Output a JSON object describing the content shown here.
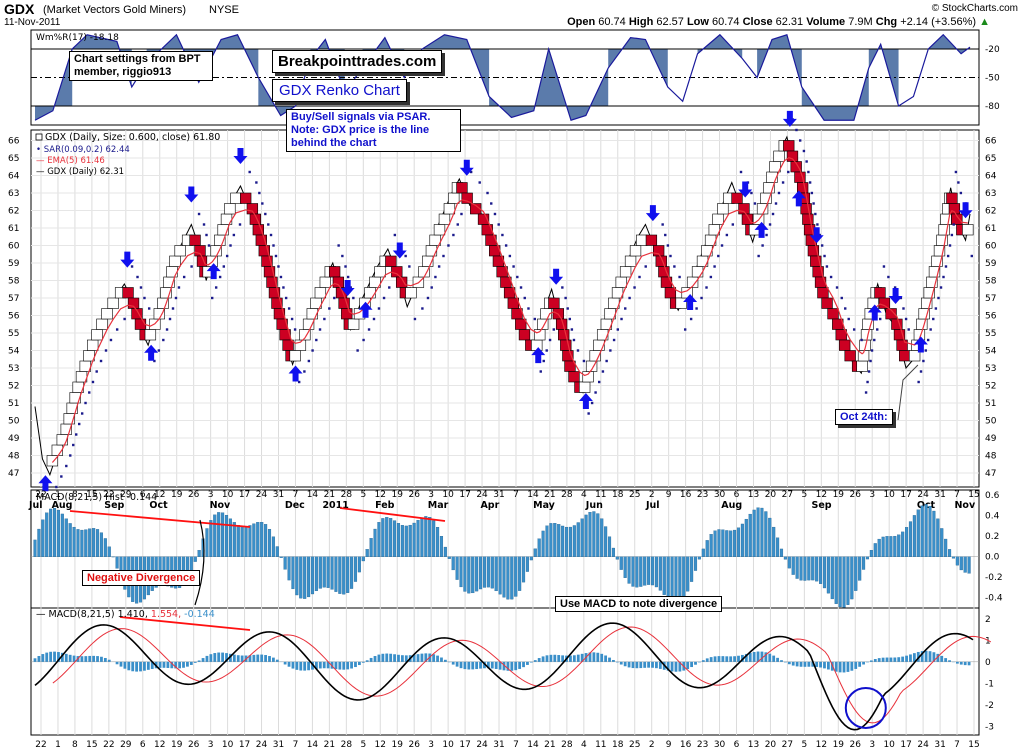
{
  "header": {
    "symbol": "GDX",
    "name": "(Market Vectors Gold Miners)",
    "exchange": "NYSE",
    "date": "11-Nov-2011",
    "source": "© StockCharts.com",
    "open_label": "Open",
    "open": "60.74",
    "high_label": "High",
    "high": "62.57",
    "low_label": "Low",
    "low": "60.74",
    "close_label": "Close",
    "close": "62.31",
    "volume_label": "Volume",
    "volume": "7.9M",
    "chg_label": "Chg",
    "chg": "+2.14 (+3.56%)",
    "chg_arrow": "▲"
  },
  "annotations": {
    "brand": "Breakpointtrades.com",
    "title": "GDX Renko Chart",
    "settings": "Chart settings from BPT member, riggio913",
    "signals": "Buy/Sell signals via PSAR. Note: GDX price is the line behind the chart",
    "neg_div": "Negative Divergence",
    "use_macd": "Use MACD to note divergence",
    "oct24": "Oct 24th:"
  },
  "legends": {
    "wm": "Wm%R(17) -18.18",
    "main_title": "GDX (Daily, Size: 0.600, close) 61.80",
    "sar": "SAR(0.09,0.2) 62.44",
    "ema": "EMA(5) 61.46",
    "gdx": "GDX (Daily) 62.31",
    "hist": "MACD(8,21,5) Hist -0.144",
    "macd_a": "MACD(8,21,5) 1.410,",
    "macd_b": "1.554,",
    "macd_c": "-0.144"
  },
  "colors": {
    "up_brick": "#ffffff",
    "down_brick": "#cc0022",
    "ema": "#e8323c",
    "sar": "#1a1a8c",
    "price": "#000000",
    "arrow": "#1010ee",
    "histogram": "#3a8fc9",
    "wm_fill": "#5b7bab",
    "wm_line": "#1a1a9c",
    "divergence": "#ff1010",
    "circle": "#1010cc"
  },
  "chart_data": [
    {
      "type": "line",
      "title": "Wm%R(17)",
      "y_ticks": [
        "-20",
        "-50",
        "-80"
      ],
      "ylim": [
        -100,
        0
      ],
      "series": [
        {
          "name": "Wm%R(17)",
          "last": -18.18
        }
      ]
    },
    {
      "type": "renko",
      "title": "GDX (Daily, Size: 0.600, close)",
      "y_ticks": [
        "66",
        "65",
        "64",
        "63",
        "62",
        "61",
        "60",
        "59",
        "58",
        "57",
        "56",
        "55",
        "54",
        "53",
        "52",
        "51",
        "50",
        "49",
        "48",
        "47"
      ],
      "ylim": [
        46.2,
        66.6
      ],
      "x_ticks": [
        "22",
        "1",
        "8",
        "15",
        "22",
        "29",
        "6",
        "12",
        "19",
        "26",
        "3",
        "10",
        "17",
        "24",
        "31",
        "7",
        "14",
        "21",
        "28",
        "5",
        "12",
        "19",
        "26",
        "3",
        "10",
        "17",
        "24",
        "31",
        "7",
        "14",
        "21",
        "28",
        "4",
        "11",
        "18",
        "25",
        "2",
        "9",
        "16",
        "23",
        "30",
        "6",
        "13",
        "20",
        "27",
        "5",
        "12",
        "19",
        "26",
        "3",
        "10",
        "17",
        "24",
        "31",
        "7",
        "15"
      ],
      "x_month_labels": [
        "Jul",
        "Aug",
        "Sep",
        "Oct",
        "Nov",
        "Dec",
        "2011",
        "Feb",
        "Mar",
        "Apr",
        "May",
        "Jun",
        "Jul",
        "Aug",
        "Sep",
        "Oct",
        "Nov"
      ],
      "price_path": [
        [
          0,
          50.8
        ],
        [
          0.5,
          47.8
        ],
        [
          1.0,
          46.9
        ],
        [
          2.0,
          49.5
        ],
        [
          3.0,
          52.5
        ],
        [
          4.0,
          54.8
        ],
        [
          5.0,
          56.5
        ],
        [
          6.0,
          57.8
        ],
        [
          6.5,
          57.0
        ],
        [
          7.2,
          55.0
        ],
        [
          7.6,
          54.3
        ],
        [
          8.5,
          57.0
        ],
        [
          9.5,
          59.5
        ],
        [
          10.5,
          61.2
        ],
        [
          11.0,
          60.0
        ],
        [
          11.5,
          58.0
        ],
        [
          12.3,
          60.5
        ],
        [
          13.2,
          62.5
        ],
        [
          13.8,
          63.4
        ],
        [
          14.5,
          62.0
        ],
        [
          15.5,
          59.0
        ],
        [
          16.5,
          55.5
        ],
        [
          17.3,
          53.2
        ],
        [
          18.0,
          55.0
        ],
        [
          19.0,
          57.3
        ],
        [
          20.0,
          59.0
        ],
        [
          20.5,
          57.5
        ],
        [
          21.2,
          55.2
        ],
        [
          22.0,
          57.0
        ],
        [
          23.0,
          58.8
        ],
        [
          23.7,
          59.8
        ],
        [
          24.5,
          58.0
        ],
        [
          25.0,
          56.5
        ],
        [
          26.0,
          58.5
        ],
        [
          27.0,
          61.0
        ],
        [
          28.0,
          63.0
        ],
        [
          28.5,
          63.8
        ],
        [
          29.2,
          62.3
        ],
        [
          30.0,
          61.8
        ],
        [
          31.0,
          59.0
        ],
        [
          32.0,
          56.5
        ],
        [
          33.0,
          54.5
        ],
        [
          33.6,
          54.0
        ],
        [
          34.2,
          56.3
        ],
        [
          34.7,
          57.5
        ],
        [
          35.3,
          55.5
        ],
        [
          36.0,
          52.8
        ],
        [
          36.8,
          51.6
        ],
        [
          37.5,
          53.5
        ],
        [
          38.5,
          56.0
        ],
        [
          39.5,
          58.5
        ],
        [
          40.5,
          60.5
        ],
        [
          41.0,
          61.2
        ],
        [
          41.8,
          59.5
        ],
        [
          42.5,
          57.5
        ],
        [
          43.2,
          56.3
        ],
        [
          44.0,
          57.8
        ],
        [
          45.0,
          60.0
        ],
        [
          46.0,
          62.0
        ],
        [
          46.8,
          63.6
        ],
        [
          47.5,
          62.0
        ],
        [
          48.2,
          60.2
        ],
        [
          49.0,
          62.5
        ],
        [
          49.8,
          65.0
        ],
        [
          50.5,
          66.2
        ],
        [
          51.0,
          64.5
        ],
        [
          51.5,
          63.2
        ],
        [
          52.2,
          60.0
        ],
        [
          53.0,
          57.0
        ],
        [
          53.8,
          55.5
        ],
        [
          54.5,
          54.0
        ],
        [
          55.0,
          53.2
        ],
        [
          55.5,
          52.7
        ],
        [
          56.0,
          56.0
        ],
        [
          56.6,
          57.8
        ],
        [
          57.2,
          56.0
        ],
        [
          57.8,
          55.4
        ],
        [
          58.5,
          53.0
        ],
        [
          59.0,
          53.5
        ],
        [
          59.8,
          56.5
        ],
        [
          60.5,
          59.0
        ],
        [
          61.0,
          61.0
        ],
        [
          61.5,
          63.3
        ],
        [
          62.0,
          61.2
        ],
        [
          62.5,
          60.3
        ],
        [
          62.8,
          61.8
        ]
      ]
    },
    {
      "type": "bar",
      "title": "MACD(8,21,5) Hist",
      "y_ticks": [
        "0.6",
        "0.4",
        "0.2",
        "0.0",
        "-0.2",
        "-0.4"
      ],
      "ylim": [
        -0.5,
        0.65
      ],
      "last": -0.144
    },
    {
      "type": "line",
      "title": "MACD(8,21,5)",
      "y_ticks": [
        "2",
        "1",
        "0",
        "-1",
        "-2",
        "-3"
      ],
      "ylim": [
        -3.4,
        2.5
      ],
      "series": [
        {
          "name": "MACD",
          "last": 1.41
        },
        {
          "name": "Signal",
          "last": 1.554
        },
        {
          "name": "Hist",
          "last": -0.144
        }
      ]
    }
  ]
}
